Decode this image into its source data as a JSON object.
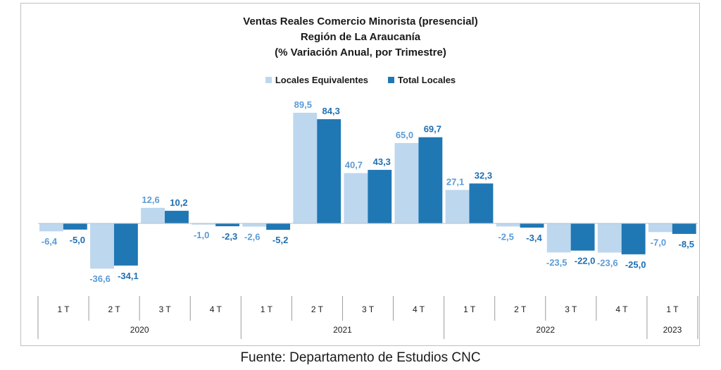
{
  "footer": {
    "source": "Fuente: Departamento de Estudios CNC"
  },
  "chart_data": {
    "type": "bar",
    "title": [
      "Ventas Reales Comercio Minorista  (presencial)",
      "Región de La Araucanía",
      "(% Variación Anual, por Trimestre)"
    ],
    "categories": [
      "1 T",
      "2 T",
      "3 T",
      "4 T",
      "1 T",
      "2 T",
      "3 T",
      "4 T",
      "1 T",
      "2 T",
      "3 T",
      "4 T",
      "1 T"
    ],
    "years": [
      {
        "label": "2020",
        "count": 4
      },
      {
        "label": "2021",
        "count": 4
      },
      {
        "label": "2022",
        "count": 4
      },
      {
        "label": "2023",
        "count": 1
      }
    ],
    "series": [
      {
        "name": "Locales Equivalentes",
        "color": "#bdd7ee",
        "label_color": "#5b9bd5",
        "values": [
          -6.4,
          -36.6,
          12.6,
          -1.0,
          -2.6,
          89.5,
          40.7,
          65.0,
          27.1,
          -2.5,
          -23.5,
          -23.6,
          -7.0
        ],
        "labels": [
          "-6,4",
          "-36,6",
          "12,6",
          "-1,0",
          "-2,6",
          "89,5",
          "40,7",
          "65,0",
          "27,1",
          "-2,5",
          "-23,5",
          "-23,6",
          "-7,0"
        ]
      },
      {
        "name": "Total Locales",
        "color": "#1f77b4",
        "label_color": "#1f6fb2",
        "values": [
          -5.0,
          -34.1,
          10.2,
          -2.3,
          -5.2,
          84.3,
          43.3,
          69.7,
          32.3,
          -3.4,
          -22.0,
          -25.0,
          -8.5
        ],
        "labels": [
          "-5,0",
          "-34,1",
          "10,2",
          "-2,3",
          "-5,2",
          "84,3",
          "43,3",
          "69,7",
          "32,3",
          "-3,4",
          "-22,0",
          "-25,0",
          "-8,5"
        ]
      }
    ],
    "legend_position": "top-center",
    "grid": false
  }
}
